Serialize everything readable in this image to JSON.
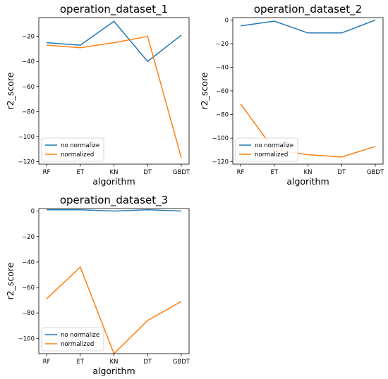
{
  "chart_data": [
    {
      "type": "line",
      "title": "operation_dataset_1",
      "xlabel": "algorithm",
      "ylabel": "r2_score",
      "categories": [
        "RF",
        "ET",
        "KN",
        "DT",
        "GBDT"
      ],
      "ylim": [
        -122,
        -5
      ],
      "yticks": [
        -20,
        -40,
        -60,
        -80,
        -100,
        -120
      ],
      "legend": "lower-left",
      "grid": false,
      "series": [
        {
          "name": "no normalize",
          "color": "#1f77b4",
          "values": [
            -25,
            -27,
            -8,
            -40,
            -19
          ]
        },
        {
          "name": "normalized",
          "color": "#ff7f0e",
          "values": [
            -27,
            -29,
            -25,
            -20,
            -117
          ]
        }
      ]
    },
    {
      "type": "line",
      "title": "operation_dataset_2",
      "xlabel": "algorithm",
      "ylabel": "r2_score",
      "categories": [
        "RF",
        "ET",
        "KN",
        "DT",
        "GBDT"
      ],
      "ylim": [
        -122,
        2
      ],
      "yticks": [
        0,
        -20,
        -40,
        -60,
        -80,
        -100,
        -120
      ],
      "legend": "lower-left",
      "grid": false,
      "series": [
        {
          "name": "no normalize",
          "color": "#1f77b4",
          "values": [
            -5,
            -1,
            -11,
            -11,
            0
          ]
        },
        {
          "name": "normalized",
          "color": "#ff7f0e",
          "values": [
            -71,
            -110,
            -114,
            -116,
            -107
          ]
        }
      ]
    },
    {
      "type": "line",
      "title": "operation_dataset_3",
      "xlabel": "algorithm",
      "ylabel": "r2_score",
      "categories": [
        "RF",
        "ET",
        "KN",
        "DT",
        "GBDT"
      ],
      "ylim": [
        -112,
        2
      ],
      "yticks": [
        0,
        -20,
        -40,
        -60,
        -80,
        -100
      ],
      "legend": "lower-left",
      "grid": false,
      "series": [
        {
          "name": "no normalize",
          "color": "#1f77b4",
          "values": [
            1,
            1,
            0,
            1,
            0
          ]
        },
        {
          "name": "normalized",
          "color": "#ff7f0e",
          "values": [
            -69,
            -44,
            -112,
            -86,
            -71
          ]
        }
      ]
    }
  ]
}
